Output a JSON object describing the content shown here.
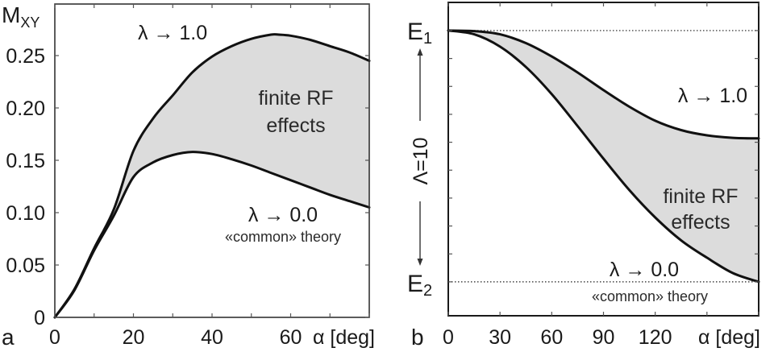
{
  "chart_data": [
    {
      "panel_label": "a",
      "type": "area",
      "title": "",
      "xlabel": "α [deg]",
      "ylabel": "M",
      "ylabel_sub": "XY",
      "xlim": [
        0,
        80
      ],
      "ylim": [
        0,
        0.3
      ],
      "xticks": [
        0,
        10,
        20,
        30,
        40,
        50,
        60,
        70,
        80
      ],
      "xtick_labels": [
        {
          "value": 0,
          "label": "0"
        },
        {
          "value": 20,
          "label": "20"
        },
        {
          "value": 40,
          "label": "40"
        },
        {
          "value": 60,
          "label": "60"
        }
      ],
      "yticks": [
        0,
        0.05,
        0.1,
        0.15,
        0.2,
        0.25
      ],
      "ytick_labels": [
        "0",
        "0.05",
        "0.10",
        "0.15",
        "0.20",
        "0.25"
      ],
      "grid": false,
      "fill_between": {
        "upper": "λ → 1.0",
        "lower": "λ → 0.0",
        "color": "#dcdcdc"
      },
      "series": [
        {
          "name": "λ → 1.0",
          "x": [
            0,
            5,
            10,
            15,
            20,
            25,
            30,
            35,
            40,
            45,
            50,
            55,
            57,
            60,
            65,
            70,
            75,
            80
          ],
          "y": [
            0,
            0.027,
            0.066,
            0.103,
            0.159,
            0.19,
            0.212,
            0.234,
            0.249,
            0.259,
            0.266,
            0.27,
            0.27,
            0.269,
            0.265,
            0.259,
            0.253,
            0.245
          ]
        },
        {
          "name": "λ → 0.0",
          "x": [
            0,
            5,
            10,
            15,
            20,
            25,
            30,
            35,
            40,
            45,
            50,
            55,
            60,
            65,
            70,
            75,
            80
          ],
          "y": [
            0,
            0.026,
            0.064,
            0.097,
            0.134,
            0.148,
            0.155,
            0.158,
            0.156,
            0.151,
            0.145,
            0.138,
            0.131,
            0.124,
            0.117,
            0.111,
            0.105
          ]
        }
      ],
      "annotations": {
        "upper_label": "λ → 1.0",
        "region_line1": "finite RF",
        "region_line2": "effects",
        "lower_label": "λ → 0.0",
        "lower_sub": "«common» theory"
      }
    },
    {
      "panel_label": "b",
      "type": "area",
      "title": "",
      "xlabel": "α [deg]",
      "ylabel": "Λ=10",
      "xlim": [
        0,
        180
      ],
      "ylim": [
        -0.135,
        1.112
      ],
      "xticks": [
        0,
        30,
        60,
        90,
        120,
        150,
        180
      ],
      "xtick_labels": [
        {
          "value": 0,
          "label": "0"
        },
        {
          "value": 30,
          "label": "30"
        },
        {
          "value": 60,
          "label": "60"
        },
        {
          "value": 90,
          "label": "90"
        },
        {
          "value": 120,
          "label": "120"
        }
      ],
      "ytick_count": 10,
      "y_levels": [
        {
          "value": 1,
          "label": "E",
          "sub": "1"
        },
        {
          "value": 0,
          "label": "E",
          "sub": "2"
        }
      ],
      "grid": false,
      "fill_between": {
        "upper": "λ → 1.0",
        "lower": "λ → 0.0",
        "color": "#dcdcdc"
      },
      "series": [
        {
          "name": "λ → 1.0",
          "x": [
            0,
            15,
            30,
            45,
            60,
            75,
            90,
            105,
            120,
            135,
            150,
            165,
            180
          ],
          "y": [
            1.0,
            0.998,
            0.985,
            0.95,
            0.897,
            0.833,
            0.763,
            0.697,
            0.641,
            0.604,
            0.583,
            0.573,
            0.571
          ]
        },
        {
          "name": "λ → 0.0",
          "x": [
            0,
            15,
            30,
            45,
            60,
            75,
            90,
            105,
            120,
            135,
            150,
            165,
            180
          ],
          "y": [
            1.0,
            0.985,
            0.936,
            0.855,
            0.747,
            0.62,
            0.49,
            0.365,
            0.256,
            0.165,
            0.096,
            0.035,
            0.0
          ]
        }
      ],
      "annotations": {
        "upper_label": "λ → 1.0",
        "region_line1": "finite RF",
        "region_line2": "effects",
        "lower_label": "λ → 0.0",
        "lower_sub": "«common» theory"
      }
    }
  ]
}
